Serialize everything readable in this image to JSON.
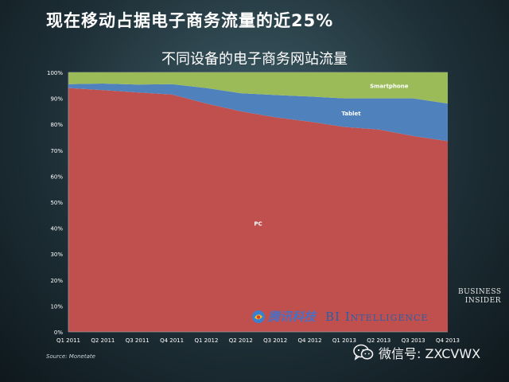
{
  "headline": "现在移动占据电子商务流量的近25%",
  "source": "Source: Monetate",
  "wechat_label": "微信号: ZXCVWX",
  "business_insider": [
    "BUSINESS",
    "INSIDER"
  ],
  "watermark": {
    "tencent": "腾讯科技",
    "bi": "BI Intelligence"
  },
  "colors": {
    "pc": "#c0504d",
    "tablet": "#4f81bd",
    "smartphone": "#9bbb59",
    "plot_bg": "#ffffff",
    "grid": "#d9d9d9"
  },
  "chart_data": {
    "type": "area",
    "stacked": true,
    "title": "不同设备的电子商务网站流量",
    "xlabel": "",
    "ylabel": "",
    "ylim": [
      0,
      100
    ],
    "y_ticks": [
      "0%",
      "10%",
      "20%",
      "30%",
      "40%",
      "50%",
      "60%",
      "70%",
      "80%",
      "90%",
      "100%"
    ],
    "grid": true,
    "legend": "none",
    "categories": [
      "Q1 2011",
      "Q2 2011",
      "Q3 2011",
      "Q4 2011",
      "Q1 2012",
      "Q2 2012",
      "Q3 2012",
      "Q4 2012",
      "Q1 2013",
      "Q2 2013",
      "Q3 2013",
      "Q4 2013"
    ],
    "series": [
      {
        "name": "PC",
        "color": "#c0504d",
        "values": [
          94,
          93.2,
          92.3,
          91.5,
          88,
          85,
          82.7,
          81,
          79,
          78,
          75.5,
          73.5
        ]
      },
      {
        "name": "Tablet",
        "color": "#4f81bd",
        "values": [
          1.5,
          2.5,
          3,
          4,
          6,
          7,
          8.6,
          9.7,
          11,
          12,
          14.5,
          14.5
        ]
      },
      {
        "name": "Smartphone",
        "color": "#9bbb59",
        "values": [
          4.5,
          4.3,
          4.7,
          4.5,
          6,
          8,
          8.7,
          9.3,
          10,
          10,
          10,
          12
        ]
      }
    ]
  }
}
